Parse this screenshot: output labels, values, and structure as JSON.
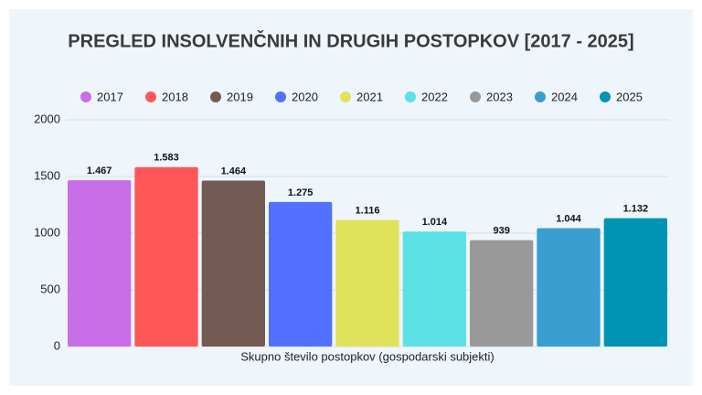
{
  "chart_data": {
    "type": "bar",
    "title": "PREGLED INSOLVENČNIH IN DRUGIH POSTOPKOV [2017 - 2025]",
    "categories": [
      "Skupno število postopkov (gospodarski subjekti)"
    ],
    "series": [
      {
        "name": "2017",
        "color": "#c86ee6",
        "values": [
          1467
        ],
        "value_labels": [
          "1.467"
        ]
      },
      {
        "name": "2018",
        "color": "#ff5757",
        "values": [
          1583
        ],
        "value_labels": [
          "1.583"
        ]
      },
      {
        "name": "2019",
        "color": "#735b53",
        "values": [
          1464
        ],
        "value_labels": [
          "1.464"
        ]
      },
      {
        "name": "2020",
        "color": "#5271ff",
        "values": [
          1275
        ],
        "value_labels": [
          "1.275"
        ]
      },
      {
        "name": "2021",
        "color": "#e0e35a",
        "values": [
          1116
        ],
        "value_labels": [
          "1.116"
        ]
      },
      {
        "name": "2022",
        "color": "#5ce1e6",
        "values": [
          1014
        ],
        "value_labels": [
          "1.014"
        ]
      },
      {
        "name": "2023",
        "color": "#999999",
        "values": [
          939
        ],
        "value_labels": [
          "939"
        ]
      },
      {
        "name": "2024",
        "color": "#3a9ed1",
        "values": [
          1044
        ],
        "value_labels": [
          "1.044"
        ]
      },
      {
        "name": "2025",
        "color": "#0093b5",
        "values": [
          1132
        ],
        "value_labels": [
          "1.132"
        ]
      }
    ],
    "ylim": [
      0,
      2000
    ],
    "yticks": [
      0,
      500,
      1000,
      1500,
      2000
    ],
    "grid": true,
    "legend": "top"
  }
}
